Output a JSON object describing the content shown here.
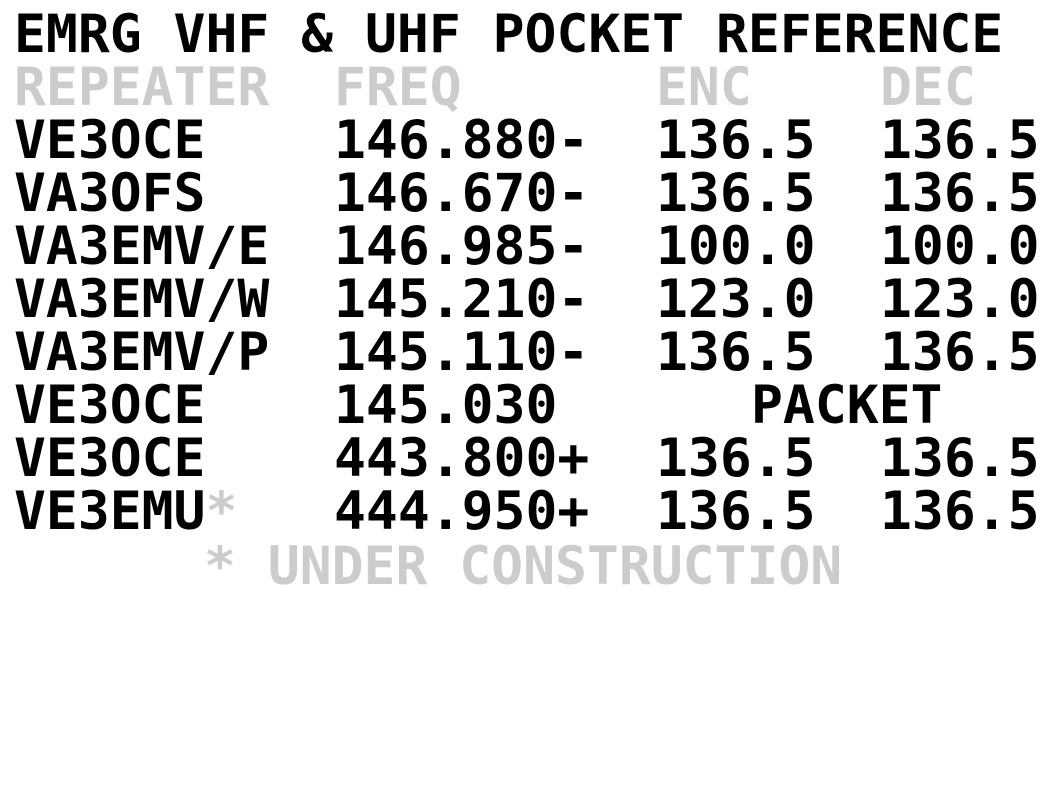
{
  "title": "EMRG VHF & UHF POCKET REFERENCE",
  "headers": {
    "repeater": "REPEATER",
    "freq": "FREQ",
    "enc": "ENC",
    "dec": "DEC"
  },
  "rows": [
    {
      "repeater": "VE3OCE",
      "freq": "146.880-",
      "enc": "136.5",
      "dec": "136.5"
    },
    {
      "repeater": "VA3OFS",
      "freq": "146.670-",
      "enc": "136.5",
      "dec": "136.5"
    },
    {
      "repeater": "VA3EMV/E",
      "freq": "146.985-",
      "enc": "100.0",
      "dec": "100.0"
    },
    {
      "repeater": "VA3EMV/W",
      "freq": "145.210-",
      "enc": "123.0",
      "dec": "123.0"
    },
    {
      "repeater": "VA3EMV/P",
      "freq": "145.110-",
      "enc": "136.5",
      "dec": "136.5"
    },
    {
      "repeater": "VE3OCE",
      "freq": "145.030",
      "mode": "PACKET"
    },
    {
      "repeater": "VE3OCE",
      "freq": "443.800+",
      "enc": "136.5",
      "dec": "136.5"
    },
    {
      "repeater": "VE3EMU",
      "marker": "*",
      "freq": "444.950+",
      "enc": "136.5",
      "dec": "136.5"
    }
  ],
  "footnote": "* UNDER CONSTRUCTION",
  "colors": {
    "text": "#000000",
    "muted": "#cccccc",
    "background": "#ffffff"
  }
}
